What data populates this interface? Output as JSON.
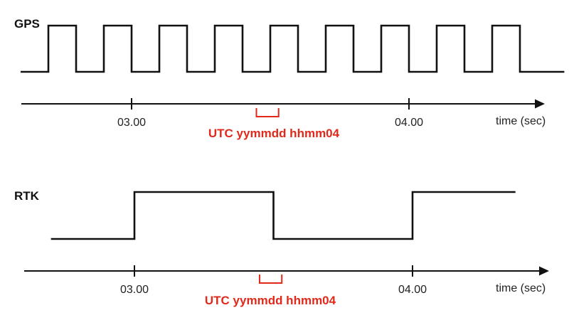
{
  "colors": {
    "signal": "#111111",
    "utc_highlight": "#e0291b"
  },
  "panels": [
    {
      "id": "gps",
      "signal_name": "GPS",
      "time_unit": "time (sec)",
      "ticks": [
        {
          "label": "03.00",
          "t": 3.0
        },
        {
          "label": "04.00",
          "t": 4.0
        }
      ],
      "utc_label": "UTC yymmdd hhmm04",
      "utc_window": [
        3.45,
        3.53
      ],
      "waveform": {
        "start": 2.6,
        "end": 4.56,
        "initial_level": 0,
        "transitions": [
          2.7,
          2.8,
          2.9,
          3.0,
          3.1,
          3.2,
          3.3,
          3.4,
          3.5,
          3.6,
          3.7,
          3.8,
          3.9,
          4.0,
          4.1,
          4.2,
          4.3,
          4.4
        ]
      }
    },
    {
      "id": "rtk",
      "signal_name": "RTK",
      "time_unit": "time (sec)",
      "ticks": [
        {
          "label": "03.00",
          "t": 3.0
        },
        {
          "label": "04.00",
          "t": 4.0
        }
      ],
      "utc_label": "UTC yymmdd hhmm04",
      "utc_window": [
        3.45,
        3.53
      ],
      "waveform": {
        "start": 2.7,
        "end": 4.37,
        "initial_level": 0,
        "transitions": [
          3.0,
          3.5,
          4.0
        ]
      }
    }
  ]
}
